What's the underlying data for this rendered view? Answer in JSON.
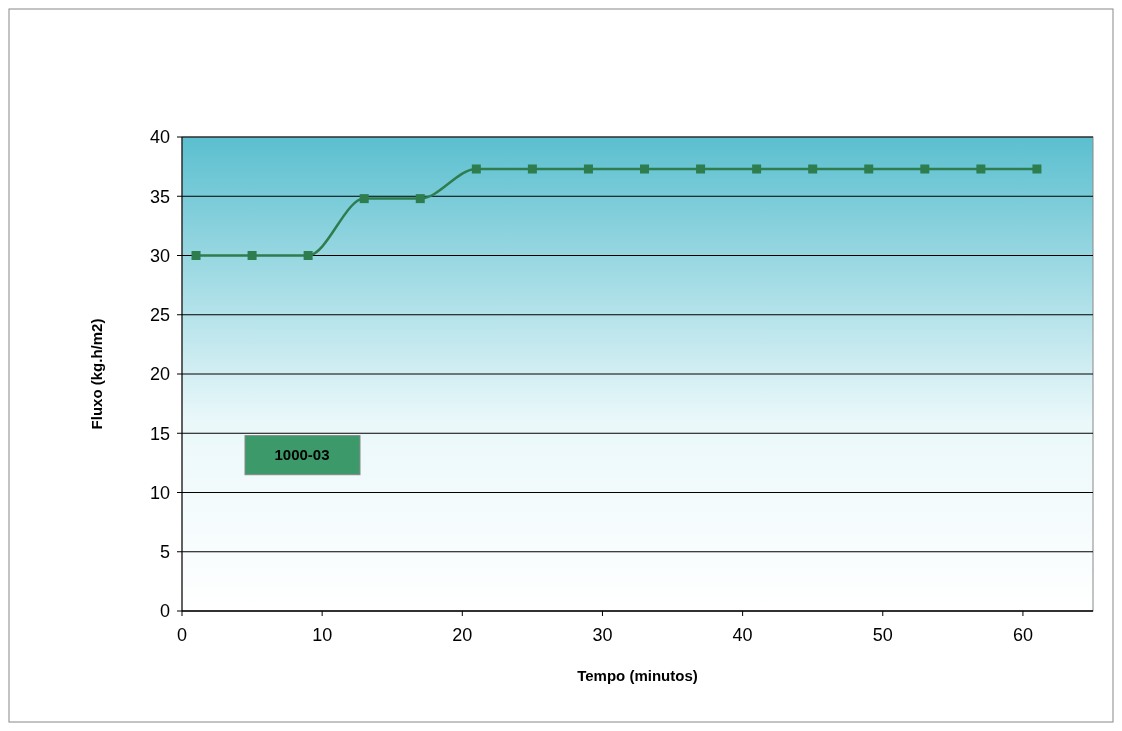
{
  "chart_data": {
    "type": "line",
    "xlabel": "Tempo (minutos)",
    "ylabel": "Fluxo (kg.h/m2)",
    "x": [
      1,
      5,
      9,
      13,
      17,
      21,
      25,
      29,
      33,
      37,
      41,
      45,
      49,
      53,
      57,
      61
    ],
    "series": [
      {
        "color": "#2e7d4f",
        "values": [
          30,
          30,
          30,
          34.8,
          34.8,
          37.3,
          37.3,
          37.3,
          37.3,
          37.3,
          37.3,
          37.3,
          37.3,
          37.3,
          37.3,
          37.3
        ]
      }
    ],
    "xlim": [
      0,
      65
    ],
    "xticks": [
      0,
      10,
      20,
      30,
      40,
      50,
      60
    ],
    "ylim": [
      0,
      40
    ],
    "yticks": [
      0,
      5,
      10,
      15,
      20,
      25,
      30,
      35,
      40
    ],
    "grid": "y",
    "marker": "square",
    "line_style": "solid",
    "annotations": [
      "1000-03"
    ]
  }
}
